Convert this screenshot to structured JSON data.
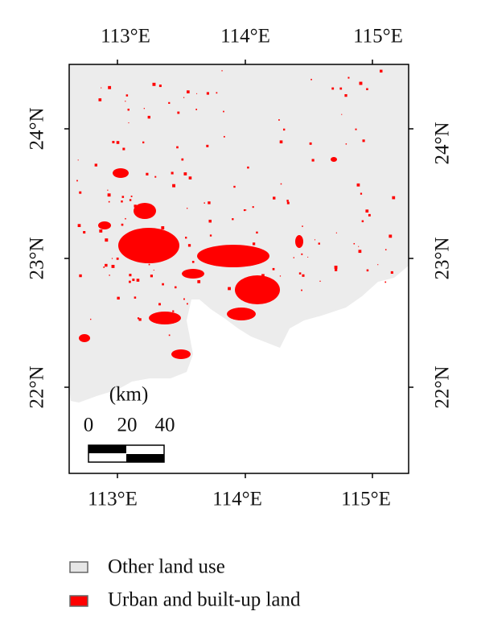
{
  "map": {
    "x_axis_labels": [
      "113°E",
      "114°E",
      "115°E"
    ],
    "y_axis_labels": [
      "24°N",
      "23°N",
      "22°N"
    ],
    "scale_bar": {
      "unit": "(km)",
      "labels": [
        "0",
        "20",
        "40"
      ]
    }
  },
  "legend": {
    "items": [
      "Other land use",
      "Urban and built-up land"
    ]
  }
}
